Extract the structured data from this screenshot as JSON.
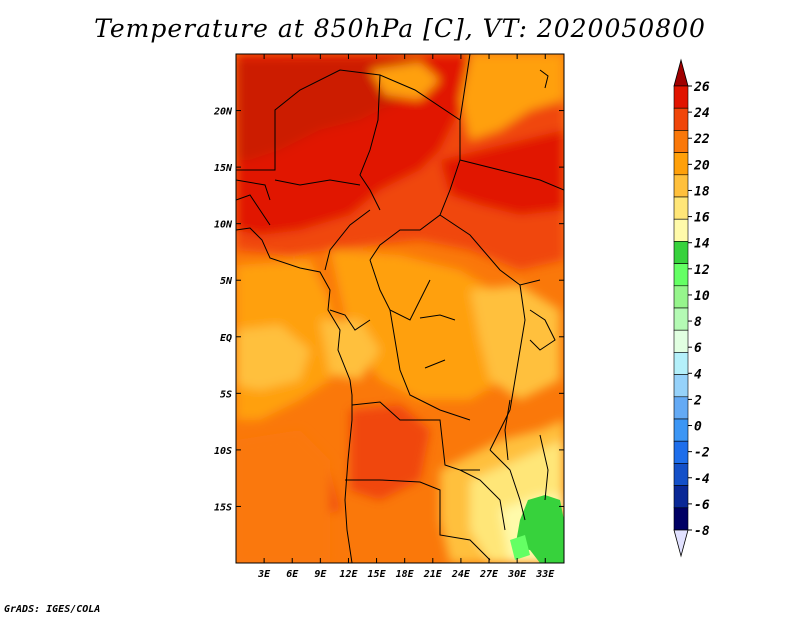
{
  "title": "Temperature at 850hPa [C], VT: 2020050800",
  "credit": "GrADS: IGES/COLA",
  "map": {
    "lon_range": [
      0,
      35
    ],
    "lat_range": [
      -20,
      25
    ],
    "lon_ticks": [
      {
        "value": 3,
        "label": "3E"
      },
      {
        "value": 6,
        "label": "6E"
      },
      {
        "value": 9,
        "label": "9E"
      },
      {
        "value": 12,
        "label": "12E"
      },
      {
        "value": 15,
        "label": "15E"
      },
      {
        "value": 18,
        "label": "18E"
      },
      {
        "value": 21,
        "label": "21E"
      },
      {
        "value": 24,
        "label": "24E"
      },
      {
        "value": 27,
        "label": "27E"
      },
      {
        "value": 30,
        "label": "30E"
      },
      {
        "value": 33,
        "label": "33E"
      }
    ],
    "lat_ticks": [
      {
        "value": 20,
        "label": "20N"
      },
      {
        "value": 15,
        "label": "15N"
      },
      {
        "value": 10,
        "label": "10N"
      },
      {
        "value": 5,
        "label": "5N"
      },
      {
        "value": 0,
        "label": "EQ"
      },
      {
        "value": -5,
        "label": "5S"
      },
      {
        "value": -10,
        "label": "10S"
      },
      {
        "value": -15,
        "label": "15S"
      }
    ]
  },
  "colorbar": {
    "levels": [
      "26",
      "24",
      "22",
      "20",
      "18",
      "16",
      "14",
      "12",
      "10",
      "8",
      "6",
      "4",
      "2",
      "0",
      "-2",
      "-4",
      "-6",
      "-8"
    ],
    "colors": [
      "#a00000",
      "#e11400",
      "#f0460a",
      "#fa780a",
      "#ffa00a",
      "#ffc03c",
      "#ffe678",
      "#fffaaa",
      "#37d23c",
      "#64ff64",
      "#96f58c",
      "#b4fab4",
      "#e1ffe1",
      "#b4f0fa",
      "#96d2fa",
      "#64aaf5",
      "#3c96f5",
      "#1e6eeb",
      "#1450c8",
      "#0a2896",
      "#000064",
      "#e1e1ff"
    ]
  }
}
